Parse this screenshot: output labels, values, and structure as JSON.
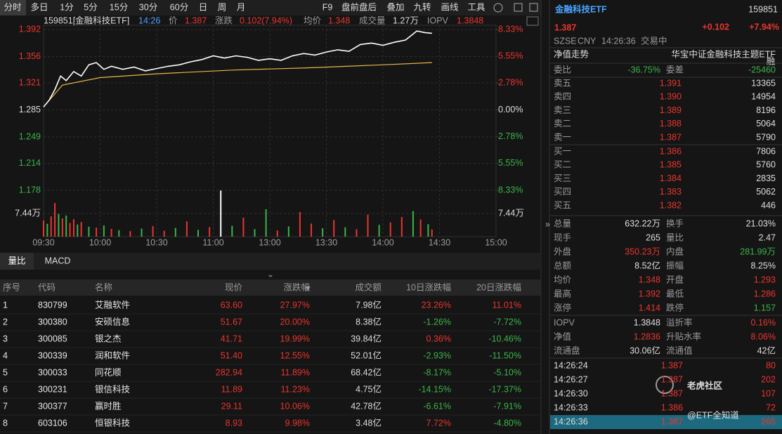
{
  "toolbar": {
    "periods": [
      "分时",
      "多日",
      "1分",
      "5分",
      "15分",
      "30分",
      "60分",
      "日",
      "周",
      "月"
    ],
    "tools": [
      "F9",
      "盘前盘后",
      "叠加",
      "九转",
      "画线",
      "工具"
    ]
  },
  "chart": {
    "header": {
      "code": "159851[金融科技ETF]",
      "time": "14:26",
      "price_label": "价",
      "price": "1.387",
      "change_label": "涨跌",
      "change": "0.102(7.94%)",
      "avg_label": "均价",
      "avg": "1.348",
      "volume_label": "成交量",
      "volume": "1.27万",
      "iopv_label": "IOPV",
      "iopv": "1.3848"
    },
    "xlim": [
      0,
      240
    ],
    "xticks": [
      {
        "value": 0,
        "label": "09:30"
      },
      {
        "value": 30,
        "label": "10:00"
      },
      {
        "value": 60,
        "label": "10:30"
      },
      {
        "value": 90,
        "label": "11:00"
      },
      {
        "value": 120,
        "label": "13:00"
      },
      {
        "value": 150,
        "label": "13:30"
      },
      {
        "value": 180,
        "label": "14:00"
      },
      {
        "value": 210,
        "label": "14:30"
      },
      {
        "value": 240,
        "label": "15:00"
      }
    ],
    "ylim": [
      1.178,
      1.392
    ],
    "yticks": [
      1.392,
      1.356,
      1.321,
      1.285,
      1.249,
      1.214,
      1.178
    ],
    "pct_lim": [
      -8.33,
      8.33
    ],
    "pct_ticks": [
      {
        "value": 8.33,
        "label": "8.33%"
      },
      {
        "value": 5.55,
        "label": "5.55%"
      },
      {
        "value": 2.78,
        "label": "2.78%"
      },
      {
        "value": 0,
        "label": "0.00%"
      },
      {
        "value": -2.78,
        "label": "2.78%"
      },
      {
        "value": -5.55,
        "label": "5.55%"
      },
      {
        "value": -8.33,
        "label": "8.33%"
      }
    ],
    "price": {
      "color": "#ffffff",
      "x": [
        0,
        3,
        6,
        9,
        12,
        16,
        20,
        24,
        28,
        32,
        36,
        42,
        48,
        54,
        60,
        66,
        72,
        78,
        84,
        90,
        96,
        102,
        108,
        114,
        120,
        126,
        132,
        138,
        144,
        150,
        156,
        162,
        168,
        174,
        180,
        186,
        192,
        198,
        202,
        206
      ],
      "values": [
        1.289,
        1.298,
        1.312,
        1.33,
        1.324,
        1.336,
        1.33,
        1.345,
        1.348,
        1.339,
        1.343,
        1.339,
        1.342,
        1.337,
        1.34,
        1.343,
        1.345,
        1.349,
        1.352,
        1.357,
        1.354,
        1.357,
        1.355,
        1.351,
        1.353,
        1.351,
        1.357,
        1.36,
        1.358,
        1.362,
        1.365,
        1.363,
        1.372,
        1.374,
        1.371,
        1.375,
        1.378,
        1.39,
        1.388,
        1.387
      ]
    },
    "average": {
      "color": "#e8b64c",
      "x": [
        0,
        10,
        30,
        60,
        100,
        140,
        180,
        206
      ],
      "values": [
        1.289,
        1.318,
        1.328,
        1.333,
        1.338,
        1.341,
        1.345,
        1.348
      ]
    },
    "volume_ylim": [
      0,
      14.88
    ],
    "volume_yticks": [
      {
        "value": 7.44,
        "label": "7.44万"
      }
    ],
    "volume": {
      "x": [
        0,
        2,
        4,
        6,
        8,
        10,
        12,
        14,
        16,
        18,
        20,
        24,
        28,
        32,
        36,
        40,
        46,
        52,
        58,
        64,
        70,
        76,
        82,
        88,
        94,
        100,
        106,
        112,
        118,
        124,
        130,
        136,
        142,
        148,
        154,
        160,
        166,
        172,
        178,
        184,
        190,
        196,
        200,
        204,
        206
      ],
      "values": [
        5.2,
        4.1,
        6.5,
        10.8,
        7.3,
        5.9,
        6.8,
        4.4,
        5.6,
        3.9,
        4.7,
        3.2,
        2.9,
        3.6,
        2.5,
        2.1,
        1.8,
        2.6,
        3.4,
        1.9,
        2.8,
        4.9,
        2.2,
        3.1,
        14.8,
        3.5,
        6.1,
        2.4,
        8.8,
        2.0,
        3.3,
        7.9,
        4.2,
        2.7,
        5.3,
        3.0,
        2.4,
        7.1,
        3.8,
        4.6,
        6.3,
        8.2,
        5.5,
        4.0,
        2.3
      ],
      "colors": [
        "#e8352e",
        "#3bb34a",
        "#e8352e",
        "#e8352e",
        "#3bb34a",
        "#e8352e",
        "#3bb34a",
        "#e8352e",
        "#e8352e",
        "#3bb34a",
        "#e8352e",
        "#3bb34a",
        "#e8352e",
        "#3bb34a",
        "#e8352e",
        "#3bb34a",
        "#e8352e",
        "#3bb34a",
        "#e8352e",
        "#e8352e",
        "#3bb34a",
        "#e8352e",
        "#3bb34a",
        "#e8352e",
        "#ffffff",
        "#3bb34a",
        "#e8352e",
        "#3bb34a",
        "#3bb34a",
        "#e8352e",
        "#3bb34a",
        "#e8352e",
        "#e8352e",
        "#3bb34a",
        "#e8352e",
        "#3bb34a",
        "#e8352e",
        "#e8352e",
        "#3bb34a",
        "#e8352e",
        "#e8352e",
        "#3bb34a",
        "#e8352e",
        "#3bb34a",
        "#e8352e"
      ]
    }
  },
  "indicator_tabs": [
    "量比",
    "MACD"
  ],
  "table": {
    "columns": [
      "序号",
      "代码",
      "名称",
      "现价",
      "涨跌幅",
      "成交额",
      "10日涨跌幅",
      "20日涨跌幅"
    ],
    "rows": [
      [
        "1",
        "830799",
        "艾融软件",
        "63.60",
        "27.97%",
        "7.98亿",
        "23.26%",
        "11.01%"
      ],
      [
        "2",
        "300380",
        "安硕信息",
        "51.67",
        "20.00%",
        "8.38亿",
        "-1.26%",
        "-7.72%"
      ],
      [
        "3",
        "300085",
        "银之杰",
        "41.71",
        "19.99%",
        "39.84亿",
        "0.36%",
        "-10.46%"
      ],
      [
        "4",
        "300339",
        "润和软件",
        "51.40",
        "12.55%",
        "52.01亿",
        "-2.93%",
        "-11.50%"
      ],
      [
        "5",
        "300033",
        "同花顺",
        "282.94",
        "11.89%",
        "68.42亿",
        "-8.17%",
        "-5.10%"
      ],
      [
        "6",
        "300231",
        "银信科技",
        "11.89",
        "11.23%",
        "4.75亿",
        "-14.15%",
        "-17.37%"
      ],
      [
        "7",
        "300377",
        "赢时胜",
        "29.11",
        "10.06%",
        "42.78亿",
        "-6.61%",
        "-7.91%"
      ],
      [
        "8",
        "603106",
        "恒银科技",
        "8.93",
        "9.98%",
        "3.48亿",
        "7.72%",
        "-4.80%"
      ]
    ]
  },
  "quote": {
    "name": "金融科技ETF",
    "code": "159851",
    "price": "1.387",
    "change": "+0.102",
    "change_pct": "+7.94%",
    "exchange": "SZSE",
    "currency": "CNY",
    "time": "14:26:36",
    "status": "交易中",
    "nav_link": "净值走势",
    "full_name": "华宝中证金融科技主题ETF",
    "margin": "融",
    "ratio": [
      "委比",
      "-36.75%",
      "委差",
      "-25460"
    ],
    "asks": [
      [
        "卖五",
        "1.391",
        "13365"
      ],
      [
        "卖四",
        "1.390",
        "14954"
      ],
      [
        "卖三",
        "1.389",
        "8196"
      ],
      [
        "卖二",
        "1.388",
        "5064"
      ],
      [
        "卖一",
        "1.387",
        "5790"
      ]
    ],
    "bids": [
      [
        "买一",
        "1.386",
        "7806"
      ],
      [
        "买二",
        "1.385",
        "5760"
      ],
      [
        "买三",
        "1.384",
        "2835"
      ],
      [
        "买四",
        "1.383",
        "5062"
      ],
      [
        "买五",
        "1.382",
        "446"
      ]
    ],
    "stats": [
      [
        "总量",
        "632.22万",
        "换手",
        "21.03%"
      ],
      [
        "现手",
        "265",
        "量比",
        "2.47"
      ],
      [
        "外盘",
        "350.23万",
        "内盘",
        "281.99万"
      ],
      [
        "总额",
        "8.52亿",
        "振幅",
        "8.25%"
      ],
      [
        "均价",
        "1.348",
        "开盘",
        "1.293"
      ],
      [
        "最高",
        "1.392",
        "最低",
        "1.286"
      ],
      [
        "涨停",
        "1.414",
        "跌停",
        "1.157"
      ]
    ],
    "stat_colors": [
      [
        "#dddddd",
        "#dddddd"
      ],
      [
        "#dddddd",
        "#dddddd"
      ],
      [
        "#e8352e",
        "#3bb34a"
      ],
      [
        "#dddddd",
        "#dddddd"
      ],
      [
        "#e8352e",
        "#e8352e"
      ],
      [
        "#e8352e",
        "#e8352e"
      ],
      [
        "#e8352e",
        "#3bb34a"
      ]
    ],
    "fund": [
      [
        "IOPV",
        "1.3848",
        "溢折率",
        "0.16%"
      ],
      [
        "净值",
        "1.2836",
        "升贴水率",
        "8.06%"
      ],
      [
        "流通盘",
        "30.06亿",
        "流通值",
        "42亿"
      ]
    ],
    "fund_colors": [
      [
        "#dddddd",
        "#e8352e"
      ],
      [
        "#e8352e",
        "#e8352e"
      ],
      [
        "#dddddd",
        "#dddddd"
      ]
    ],
    "trades": [
      [
        "14:26:24",
        "1.387",
        "80"
      ],
      [
        "14:26:27",
        "1.387",
        "202"
      ],
      [
        "14:26:30",
        "1.387",
        "107"
      ],
      [
        "14:26:33",
        "1.386",
        "72"
      ],
      [
        "14:26:36",
        "1.387",
        "265"
      ]
    ]
  },
  "watermark": {
    "brand": "老虎社区",
    "author": "@ETF全知道"
  }
}
